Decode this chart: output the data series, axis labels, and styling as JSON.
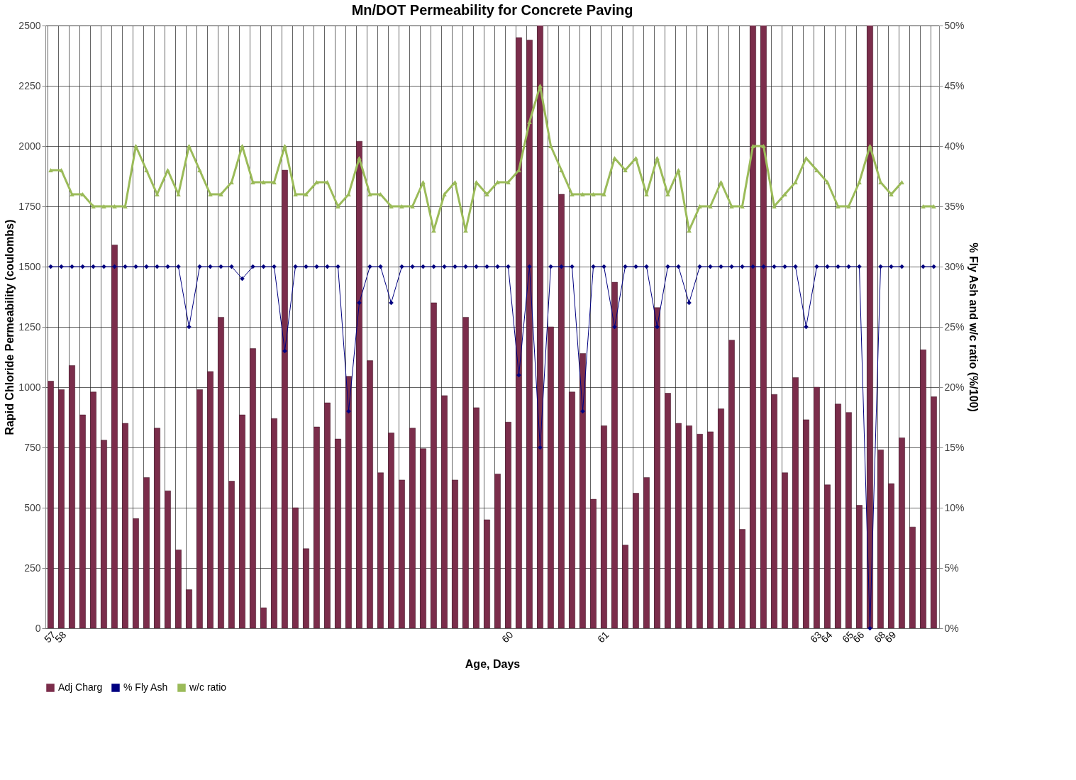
{
  "chart_data": {
    "type": "bar",
    "title": "Mn/DOT Permeability  for Concrete Paving",
    "xlabel": "Age, Days",
    "ylabel": "Rapid Chloride Permeability (coulombs)",
    "y2label": "% Fly Ash      and      w/c ratio (%/100)",
    "categories": [
      "57",
      "58",
      null,
      null,
      null,
      null,
      null,
      null,
      null,
      null,
      null,
      null,
      null,
      null,
      null,
      null,
      null,
      null,
      null,
      null,
      null,
      null,
      null,
      null,
      null,
      null,
      null,
      null,
      null,
      null,
      null,
      null,
      null,
      null,
      null,
      null,
      null,
      null,
      null,
      null,
      null,
      null,
      null,
      "60",
      null,
      null,
      null,
      null,
      null,
      null,
      null,
      null,
      "61",
      null,
      null,
      null,
      null,
      null,
      null,
      null,
      null,
      null,
      null,
      null,
      null,
      null,
      null,
      null,
      null,
      null,
      null,
      null,
      "63",
      "64",
      null,
      "65",
      "66",
      null,
      "68",
      "69",
      null,
      null,
      null,
      null
    ],
    "series": [
      {
        "name": "Adj Charg",
        "color": "#7b2d4b",
        "values": [
          1025,
          990,
          1090,
          885,
          980,
          780,
          1590,
          850,
          455,
          625,
          830,
          570,
          325,
          160,
          990,
          1065,
          1290,
          610,
          885,
          1160,
          85,
          870,
          1900,
          500,
          330,
          835,
          935,
          785,
          1045,
          2020,
          1110,
          645,
          810,
          615,
          830,
          745,
          1350,
          965,
          615,
          1290,
          915,
          450,
          640,
          855,
          2450,
          2440,
          2500,
          1250,
          1800,
          980,
          1140,
          535,
          840,
          1435,
          345,
          560,
          625,
          1330,
          975,
          850,
          840,
          805,
          815,
          910,
          1195,
          410,
          2500,
          2500,
          970,
          645,
          1040,
          865,
          1000,
          595,
          930,
          895,
          510,
          2500,
          740,
          600,
          790,
          420,
          1155,
          960
        ]
      },
      {
        "name": "% Fly Ash",
        "type": "line",
        "axis": "y2",
        "marker": "diamond",
        "color": "#000080",
        "values": [
          30,
          30,
          30,
          30,
          30,
          30,
          30,
          30,
          30,
          30,
          30,
          30,
          30,
          25,
          30,
          30,
          30,
          30,
          29,
          30,
          30,
          30,
          23,
          30,
          30,
          30,
          30,
          30,
          18,
          27,
          30,
          30,
          27,
          30,
          30,
          30,
          30,
          30,
          30,
          30,
          30,
          30,
          30,
          30,
          21,
          30,
          15,
          30,
          30,
          30,
          18,
          30,
          30,
          25,
          30,
          30,
          30,
          25,
          30,
          30,
          27,
          30,
          30,
          30,
          30,
          30,
          30,
          30,
          30,
          30,
          30,
          25,
          30,
          30,
          30,
          30,
          30,
          0,
          30,
          30,
          30,
          null,
          30,
          30
        ]
      },
      {
        "name": "w/c ratio",
        "type": "line",
        "axis": "y2",
        "marker": "triangle",
        "color": "#9bbb59",
        "values": [
          38,
          38,
          36,
          36,
          35,
          35,
          35,
          35,
          40,
          38,
          36,
          38,
          36,
          40,
          38,
          36,
          36,
          37,
          40,
          37,
          37,
          37,
          40,
          36,
          36,
          37,
          37,
          35,
          36,
          39,
          36,
          36,
          35,
          35,
          35,
          37,
          33,
          36,
          37,
          33,
          37,
          36,
          37,
          37,
          38,
          42,
          45,
          40,
          38,
          36,
          36,
          36,
          36,
          39,
          38,
          39,
          36,
          39,
          36,
          38,
          33,
          35,
          35,
          37,
          35,
          35,
          40,
          40,
          35,
          36,
          37,
          39,
          38,
          37,
          35,
          35,
          37,
          40,
          37,
          36,
          37,
          null,
          35,
          35
        ]
      }
    ],
    "ylim": [
      0,
      2500
    ],
    "yticks": [
      0,
      250,
      500,
      750,
      1000,
      1250,
      1500,
      1750,
      2000,
      2250,
      2500
    ],
    "y2lim": [
      0,
      50
    ],
    "y2ticks": [
      {
        "value": 0,
        "label": "0%"
      },
      {
        "value": 5,
        "label": "5%"
      },
      {
        "value": 10,
        "label": "10%"
      },
      {
        "value": 15,
        "label": "15%"
      },
      {
        "value": 20,
        "label": "20%"
      },
      {
        "value": 25,
        "label": "25%"
      },
      {
        "value": 30,
        "label": "30%"
      },
      {
        "value": 35,
        "label": "35%"
      },
      {
        "value": 40,
        "label": "40%"
      },
      {
        "value": 45,
        "label": "45%"
      },
      {
        "value": 50,
        "label": "50%"
      }
    ],
    "grid": true,
    "legend": "bottom",
    "line_style": "solid"
  }
}
